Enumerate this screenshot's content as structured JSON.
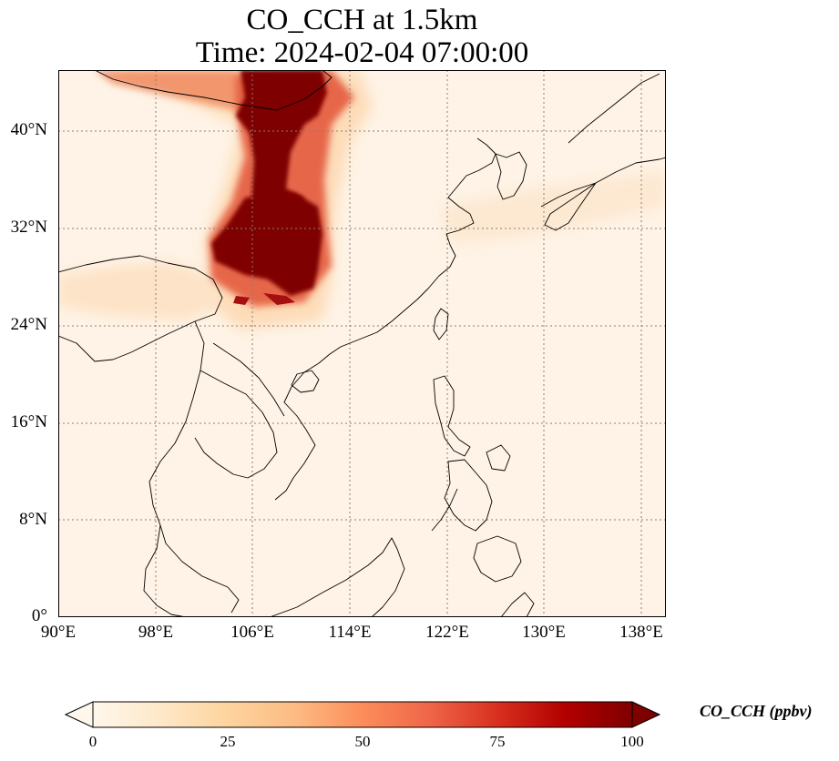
{
  "title": {
    "line1": "CO_CCH at 1.5km",
    "line2": "Time: 2024-02-04 07:00:00"
  },
  "map": {
    "projection": "PlateCarree",
    "lon_range": [
      90,
      140
    ],
    "lat_range": [
      0,
      45
    ],
    "gridlines": "dotted gray",
    "x_ticks": [
      "90°E",
      "98°E",
      "106°E",
      "114°E",
      "122°E",
      "130°E",
      "138°E"
    ],
    "y_ticks": [
      "0°",
      "8°N",
      "16°N",
      "24°N",
      "32°N",
      "40°N"
    ]
  },
  "colorbar": {
    "colormap": "OrRd",
    "label": "CO_CCH (ppbv)",
    "range": [
      0,
      100
    ],
    "ticks": [
      "0",
      "25",
      "50",
      "75",
      "100"
    ],
    "extend": "both",
    "colors": [
      "#fff7ec",
      "#fee8c8",
      "#fdd49e",
      "#fdbb84",
      "#fc8d59",
      "#ef6548",
      "#d7301f",
      "#b30000",
      "#7f0000"
    ]
  }
}
